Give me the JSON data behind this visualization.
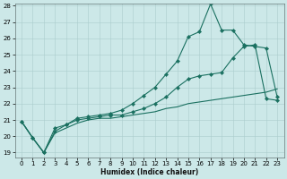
{
  "xlabel": "Humidex (Indice chaleur)",
  "bg_color": "#cce8e8",
  "grid_color": "#aacccc",
  "line_color": "#1a7060",
  "x": [
    0,
    1,
    2,
    3,
    4,
    5,
    6,
    7,
    8,
    9,
    10,
    11,
    12,
    13,
    14,
    15,
    16,
    17,
    18,
    19,
    20,
    21,
    22,
    23
  ],
  "line1": [
    20.9,
    19.9,
    19.0,
    20.5,
    20.7,
    21.1,
    21.2,
    21.3,
    21.4,
    21.6,
    22.0,
    22.5,
    23.0,
    23.8,
    24.6,
    26.1,
    26.4,
    28.1,
    26.5,
    26.5,
    25.6,
    25.5,
    25.4,
    22.4
  ],
  "line2": [
    20.9,
    19.9,
    19.0,
    20.3,
    20.7,
    21.0,
    21.1,
    21.2,
    21.3,
    21.3,
    21.5,
    21.7,
    22.0,
    22.4,
    23.0,
    23.5,
    23.7,
    23.8,
    23.9,
    24.8,
    25.5,
    25.6,
    22.3,
    22.2
  ],
  "line3": [
    20.9,
    19.9,
    19.0,
    20.2,
    20.5,
    20.8,
    21.0,
    21.1,
    21.1,
    21.2,
    21.3,
    21.4,
    21.5,
    21.7,
    21.8,
    22.0,
    22.1,
    22.2,
    22.3,
    22.4,
    22.5,
    22.6,
    22.7,
    22.9
  ],
  "ylim_min": 19,
  "ylim_max": 28,
  "yticks": [
    19,
    20,
    21,
    22,
    23,
    24,
    25,
    26,
    27,
    28
  ],
  "xticks": [
    0,
    1,
    2,
    3,
    4,
    5,
    6,
    7,
    8,
    9,
    10,
    11,
    12,
    13,
    14,
    15,
    16,
    17,
    18,
    19,
    20,
    21,
    22,
    23
  ],
  "markersize": 2.2,
  "linewidth": 0.8,
  "tick_fontsize": 5.0,
  "xlabel_fontsize": 5.5
}
